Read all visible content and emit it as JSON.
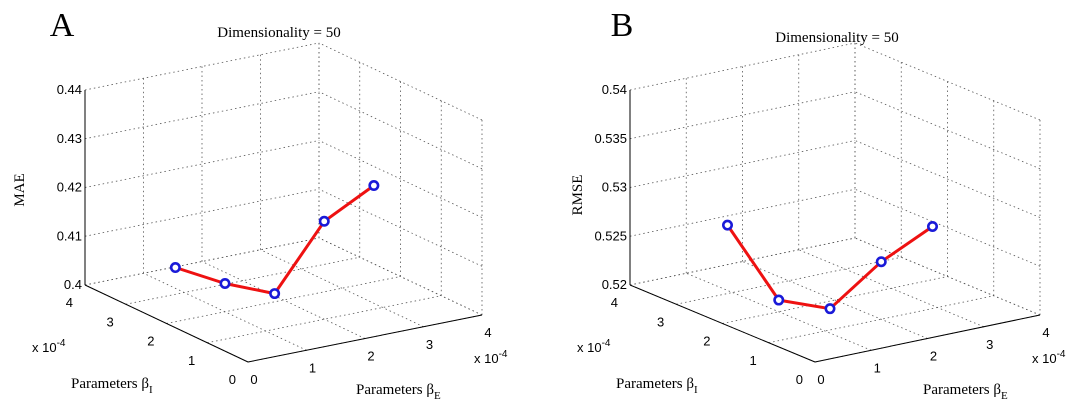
{
  "panels": [
    {
      "letter": "A",
      "chart_data": {
        "type": "line",
        "title": "Dimensionality = 50",
        "xlabel": "Parameters β_E",
        "ylabel": "Parameters β_I",
        "zlabel": "MAE",
        "x_ticks": [
          "0",
          "1",
          "2",
          "3",
          "4"
        ],
        "y_ticks": [
          "0",
          "1",
          "2",
          "3",
          "4"
        ],
        "z_ticks": [
          "0.4",
          "0.41",
          "0.42",
          "0.43",
          "0.44"
        ],
        "x_exponent": "x 10",
        "x_exponent_power": "-4",
        "y_exponent": "x 10",
        "y_exponent_power": "-4",
        "xlim": [
          0,
          0.0004
        ],
        "ylim": [
          0,
          0.0004
        ],
        "zlim": [
          0.4,
          0.44
        ],
        "series": [
          {
            "x": [
              5e-05,
              0.0001,
              0.00015,
              0.0002,
              0.00025
            ],
            "y": [
              0.00025,
              0.0002,
              0.00015,
              0.0001,
              5e-05
            ],
            "z": [
              0.4083,
              0.4058,
              0.4045,
              0.4201,
              0.4282
            ]
          }
        ]
      }
    },
    {
      "letter": "B",
      "chart_data": {
        "type": "line",
        "title": "Dimensionality = 50",
        "xlabel": "Parameters β_E",
        "ylabel": "Parameters β_I",
        "zlabel": "RMSE",
        "x_ticks": [
          "0",
          "1",
          "2",
          "3",
          "4"
        ],
        "y_ticks": [
          "0",
          "1",
          "2",
          "3",
          "4"
        ],
        "z_ticks": [
          "0.52",
          "0.525",
          "0.53",
          "0.535",
          "0.54"
        ],
        "x_exponent": "x 10",
        "x_exponent_power": "-4",
        "y_exponent": "x 10",
        "y_exponent_power": "-4",
        "xlim": [
          0,
          0.0004
        ],
        "ylim": [
          0,
          0.0004
        ],
        "zlim": [
          0.52,
          0.54
        ],
        "series": [
          {
            "x": [
              5e-05,
              0.0001,
              0.00015,
              0.0002,
              0.00025
            ],
            "y": [
              0.00025,
              0.0002,
              0.00015,
              0.0001,
              5e-05
            ],
            "z": [
              0.5285,
              0.5212,
              0.5207,
              0.5259,
              0.5299
            ]
          }
        ]
      }
    }
  ]
}
